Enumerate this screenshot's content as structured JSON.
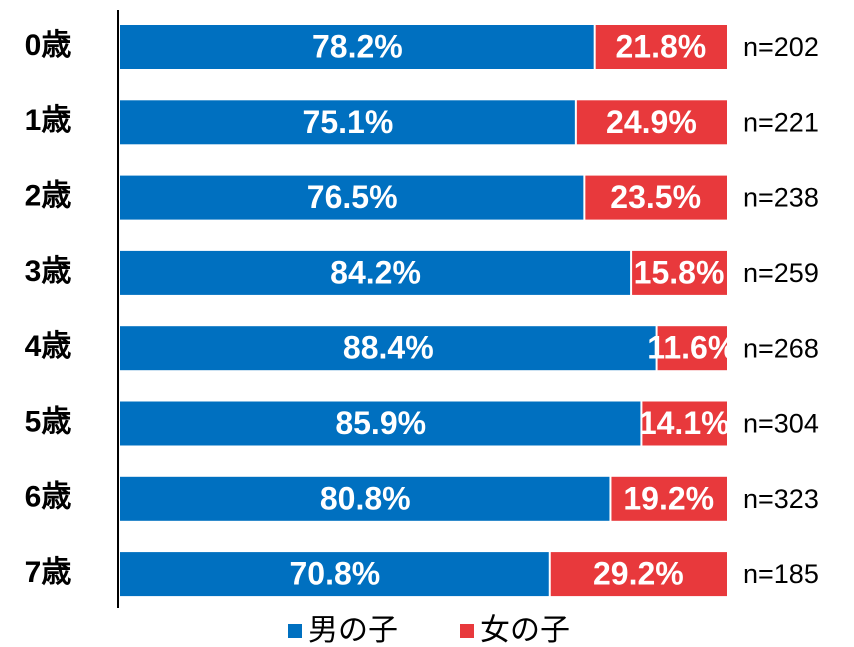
{
  "chart_data": {
    "type": "stacked_barh",
    "categories": [
      "0歳",
      "1歳",
      "2歳",
      "3歳",
      "4歳",
      "5歳",
      "6歳",
      "7歳"
    ],
    "series": [
      {
        "name": "男の子",
        "color": "#0070c0",
        "values": [
          78.2,
          75.1,
          76.5,
          84.2,
          88.4,
          85.9,
          80.8,
          70.8
        ],
        "value_labels": [
          "78.2%",
          "75.1%",
          "76.5%",
          "84.2%",
          "88.4%",
          "85.9%",
          "80.8%",
          "70.8%"
        ]
      },
      {
        "name": "女の子",
        "color": "#e8393c",
        "values": [
          21.8,
          24.9,
          23.5,
          15.8,
          11.6,
          14.1,
          19.2,
          29.2
        ],
        "value_labels": [
          "21.8%",
          "24.9%",
          "23.5%",
          "15.8%",
          "11.6%",
          "14.1%",
          "19.2%",
          "29.2%"
        ]
      }
    ],
    "n_labels": [
      "n=202",
      "n=221",
      "n=238",
      "n=259",
      "n=268",
      "n=304",
      "n=323",
      "n=185"
    ],
    "xlim": [
      0,
      100
    ],
    "legend": "bottom"
  }
}
